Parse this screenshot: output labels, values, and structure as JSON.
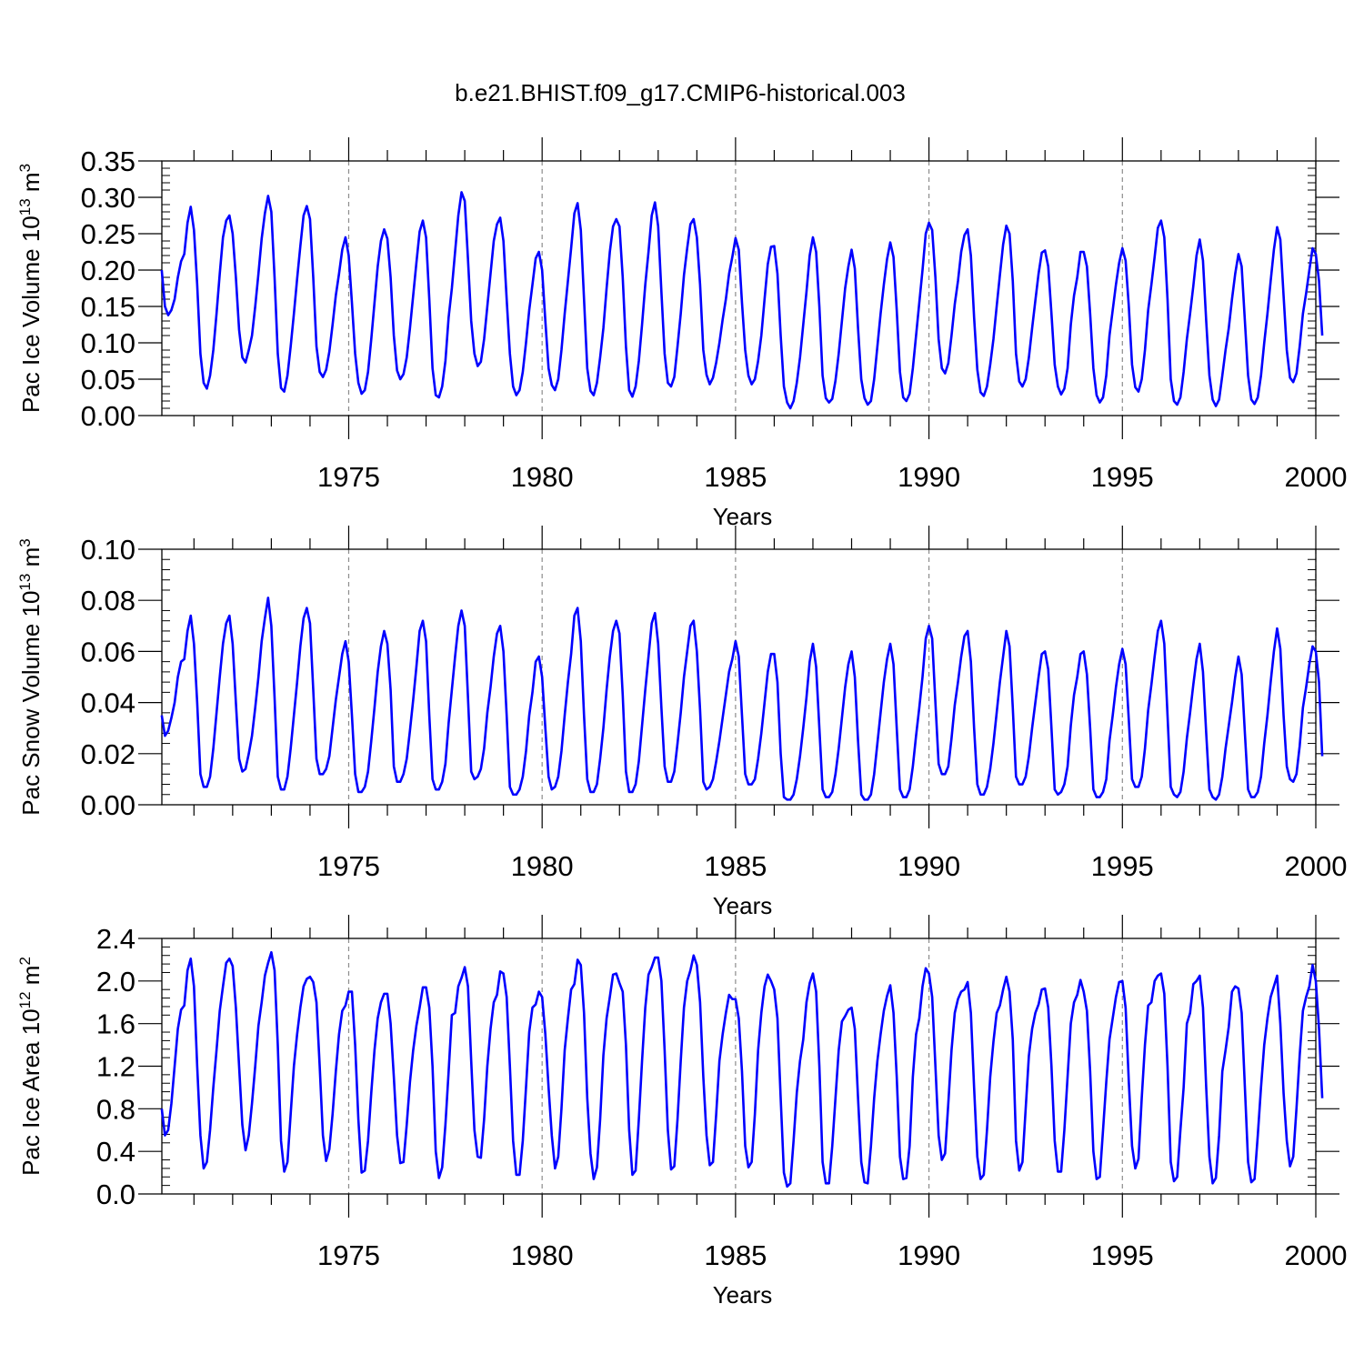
{
  "figure_title": "b.e21.BHIST.f09_g17.CMIP6-historical.003",
  "line_color": "#0000ff",
  "chart_data": [
    {
      "type": "line",
      "ylabel_main": "Pac Ice Volume 10",
      "ylabel_exp": "13",
      "ylabel_unit": " m",
      "ylabel_unit_exp": "3",
      "xlabel": "Years",
      "xlim": [
        1970.17,
        2000
      ],
      "ylim": [
        0,
        0.35
      ],
      "x_ticks": [
        1975,
        1980,
        1985,
        1990,
        1995,
        2000
      ],
      "x_tick_labels": [
        "1975",
        "1980",
        "1985",
        "1990",
        "1995",
        "2000"
      ],
      "y_ticks": [
        0,
        0.05,
        0.1,
        0.15,
        0.2,
        0.25,
        0.3,
        0.35
      ],
      "y_tick_labels": [
        "0.00",
        "0.05",
        "0.10",
        "0.15",
        "0.20",
        "0.25",
        "0.30",
        "0.35"
      ],
      "start_year": 1970,
      "month_start": 2,
      "values": [
        0.2,
        0.15,
        0.138,
        0.145,
        0.16,
        0.19,
        0.212,
        0.222,
        0.265,
        0.287,
        0.255,
        0.18,
        0.085,
        0.045,
        0.037,
        0.055,
        0.09,
        0.14,
        0.195,
        0.245,
        0.268,
        0.275,
        0.25,
        0.19,
        0.118,
        0.08,
        0.073,
        0.09,
        0.11,
        0.15,
        0.195,
        0.243,
        0.278,
        0.302,
        0.28,
        0.19,
        0.085,
        0.038,
        0.033,
        0.055,
        0.095,
        0.14,
        0.188,
        0.233,
        0.275,
        0.288,
        0.27,
        0.19,
        0.095,
        0.06,
        0.053,
        0.063,
        0.088,
        0.125,
        0.165,
        0.195,
        0.228,
        0.245,
        0.22,
        0.155,
        0.085,
        0.045,
        0.03,
        0.035,
        0.06,
        0.105,
        0.155,
        0.205,
        0.24,
        0.256,
        0.243,
        0.19,
        0.11,
        0.062,
        0.05,
        0.057,
        0.08,
        0.12,
        0.165,
        0.21,
        0.253,
        0.268,
        0.245,
        0.16,
        0.065,
        0.028,
        0.025,
        0.04,
        0.075,
        0.135,
        0.175,
        0.225,
        0.275,
        0.307,
        0.295,
        0.215,
        0.13,
        0.085,
        0.068,
        0.074,
        0.105,
        0.15,
        0.195,
        0.24,
        0.263,
        0.272,
        0.24,
        0.16,
        0.085,
        0.04,
        0.028,
        0.035,
        0.06,
        0.1,
        0.145,
        0.18,
        0.216,
        0.225,
        0.2,
        0.13,
        0.065,
        0.042,
        0.035,
        0.05,
        0.09,
        0.14,
        0.185,
        0.23,
        0.278,
        0.292,
        0.255,
        0.16,
        0.065,
        0.034,
        0.028,
        0.045,
        0.08,
        0.12,
        0.175,
        0.225,
        0.26,
        0.27,
        0.26,
        0.19,
        0.095,
        0.035,
        0.026,
        0.04,
        0.075,
        0.125,
        0.18,
        0.225,
        0.275,
        0.293,
        0.26,
        0.17,
        0.085,
        0.045,
        0.04,
        0.053,
        0.095,
        0.14,
        0.193,
        0.23,
        0.263,
        0.27,
        0.245,
        0.18,
        0.09,
        0.056,
        0.043,
        0.052,
        0.073,
        0.1,
        0.132,
        0.16,
        0.195,
        0.218,
        0.244,
        0.228,
        0.155,
        0.09,
        0.055,
        0.043,
        0.05,
        0.075,
        0.11,
        0.16,
        0.208,
        0.232,
        0.233,
        0.195,
        0.11,
        0.04,
        0.018,
        0.01,
        0.02,
        0.045,
        0.08,
        0.125,
        0.17,
        0.22,
        0.245,
        0.225,
        0.15,
        0.055,
        0.024,
        0.018,
        0.023,
        0.048,
        0.085,
        0.13,
        0.175,
        0.205,
        0.228,
        0.202,
        0.12,
        0.05,
        0.024,
        0.015,
        0.02,
        0.05,
        0.095,
        0.14,
        0.18,
        0.215,
        0.238,
        0.218,
        0.145,
        0.06,
        0.025,
        0.02,
        0.03,
        0.065,
        0.11,
        0.155,
        0.2,
        0.25,
        0.265,
        0.255,
        0.19,
        0.105,
        0.065,
        0.058,
        0.072,
        0.11,
        0.153,
        0.185,
        0.225,
        0.248,
        0.256,
        0.22,
        0.135,
        0.063,
        0.032,
        0.027,
        0.04,
        0.07,
        0.105,
        0.15,
        0.193,
        0.235,
        0.261,
        0.25,
        0.185,
        0.085,
        0.047,
        0.04,
        0.05,
        0.08,
        0.12,
        0.158,
        0.195,
        0.224,
        0.227,
        0.205,
        0.14,
        0.07,
        0.04,
        0.029,
        0.037,
        0.065,
        0.125,
        0.165,
        0.19,
        0.225,
        0.225,
        0.205,
        0.14,
        0.065,
        0.028,
        0.018,
        0.025,
        0.055,
        0.11,
        0.145,
        0.18,
        0.21,
        0.23,
        0.213,
        0.15,
        0.07,
        0.039,
        0.033,
        0.05,
        0.09,
        0.145,
        0.18,
        0.218,
        0.258,
        0.268,
        0.245,
        0.16,
        0.05,
        0.02,
        0.015,
        0.025,
        0.06,
        0.105,
        0.14,
        0.178,
        0.22,
        0.242,
        0.213,
        0.13,
        0.055,
        0.022,
        0.013,
        0.022,
        0.055,
        0.09,
        0.12,
        0.16,
        0.195,
        0.222,
        0.205,
        0.13,
        0.055,
        0.022,
        0.016,
        0.025,
        0.055,
        0.1,
        0.14,
        0.185,
        0.228,
        0.259,
        0.242,
        0.165,
        0.09,
        0.052,
        0.046,
        0.058,
        0.095,
        0.14,
        0.168,
        0.2,
        0.23,
        0.222,
        0.185,
        0.11
      ]
    },
    {
      "type": "line",
      "ylabel_main": "Pac Snow Volume 10",
      "ylabel_exp": "13",
      "ylabel_unit": " m",
      "ylabel_unit_exp": "3",
      "xlabel": "Years",
      "xlim": [
        1970.17,
        2000
      ],
      "ylim": [
        0,
        0.1
      ],
      "x_ticks": [
        1975,
        1980,
        1985,
        1990,
        1995,
        2000
      ],
      "x_tick_labels": [
        "1975",
        "1980",
        "1985",
        "1990",
        "1995",
        "2000"
      ],
      "y_ticks": [
        0,
        0.02,
        0.04,
        0.06,
        0.08,
        0.1
      ],
      "y_tick_labels": [
        "0.00",
        "0.02",
        "0.04",
        "0.06",
        "0.08",
        "0.10"
      ],
      "start_year": 1970,
      "month_start": 2,
      "values": [
        0.035,
        0.027,
        0.029,
        0.034,
        0.04,
        0.05,
        0.056,
        0.057,
        0.068,
        0.074,
        0.063,
        0.04,
        0.012,
        0.007,
        0.007,
        0.011,
        0.022,
        0.036,
        0.05,
        0.063,
        0.071,
        0.074,
        0.063,
        0.04,
        0.018,
        0.013,
        0.014,
        0.02,
        0.027,
        0.038,
        0.05,
        0.064,
        0.073,
        0.081,
        0.07,
        0.042,
        0.011,
        0.006,
        0.006,
        0.011,
        0.022,
        0.035,
        0.048,
        0.062,
        0.073,
        0.077,
        0.071,
        0.045,
        0.018,
        0.012,
        0.012,
        0.014,
        0.019,
        0.03,
        0.041,
        0.05,
        0.059,
        0.064,
        0.056,
        0.035,
        0.012,
        0.005,
        0.005,
        0.007,
        0.013,
        0.025,
        0.038,
        0.052,
        0.062,
        0.068,
        0.063,
        0.045,
        0.015,
        0.009,
        0.009,
        0.012,
        0.018,
        0.029,
        0.041,
        0.054,
        0.068,
        0.072,
        0.064,
        0.035,
        0.01,
        0.006,
        0.006,
        0.009,
        0.016,
        0.032,
        0.045,
        0.058,
        0.07,
        0.076,
        0.07,
        0.042,
        0.013,
        0.01,
        0.011,
        0.014,
        0.022,
        0.036,
        0.046,
        0.058,
        0.067,
        0.07,
        0.06,
        0.035,
        0.007,
        0.004,
        0.004,
        0.006,
        0.011,
        0.021,
        0.035,
        0.044,
        0.056,
        0.058,
        0.05,
        0.03,
        0.011,
        0.006,
        0.007,
        0.011,
        0.021,
        0.035,
        0.048,
        0.059,
        0.074,
        0.077,
        0.064,
        0.035,
        0.01,
        0.005,
        0.005,
        0.008,
        0.018,
        0.03,
        0.045,
        0.058,
        0.068,
        0.072,
        0.067,
        0.043,
        0.013,
        0.005,
        0.005,
        0.008,
        0.017,
        0.031,
        0.045,
        0.058,
        0.071,
        0.075,
        0.063,
        0.038,
        0.015,
        0.009,
        0.009,
        0.013,
        0.024,
        0.036,
        0.05,
        0.06,
        0.07,
        0.072,
        0.06,
        0.037,
        0.009,
        0.006,
        0.007,
        0.01,
        0.017,
        0.025,
        0.034,
        0.043,
        0.052,
        0.057,
        0.064,
        0.058,
        0.035,
        0.012,
        0.008,
        0.008,
        0.01,
        0.018,
        0.028,
        0.04,
        0.052,
        0.059,
        0.059,
        0.048,
        0.02,
        0.003,
        0.002,
        0.002,
        0.004,
        0.01,
        0.019,
        0.03,
        0.042,
        0.056,
        0.063,
        0.054,
        0.03,
        0.006,
        0.003,
        0.003,
        0.005,
        0.012,
        0.022,
        0.034,
        0.046,
        0.055,
        0.06,
        0.05,
        0.025,
        0.004,
        0.002,
        0.002,
        0.004,
        0.012,
        0.024,
        0.036,
        0.048,
        0.057,
        0.063,
        0.055,
        0.03,
        0.006,
        0.003,
        0.003,
        0.006,
        0.015,
        0.027,
        0.038,
        0.05,
        0.065,
        0.07,
        0.065,
        0.04,
        0.016,
        0.012,
        0.012,
        0.015,
        0.026,
        0.039,
        0.048,
        0.058,
        0.066,
        0.068,
        0.056,
        0.03,
        0.008,
        0.004,
        0.004,
        0.007,
        0.014,
        0.024,
        0.036,
        0.048,
        0.058,
        0.068,
        0.062,
        0.038,
        0.011,
        0.008,
        0.008,
        0.011,
        0.019,
        0.03,
        0.04,
        0.05,
        0.059,
        0.06,
        0.053,
        0.03,
        0.006,
        0.004,
        0.005,
        0.008,
        0.015,
        0.031,
        0.043,
        0.05,
        0.059,
        0.06,
        0.051,
        0.03,
        0.006,
        0.003,
        0.003,
        0.005,
        0.01,
        0.025,
        0.035,
        0.046,
        0.055,
        0.061,
        0.055,
        0.033,
        0.01,
        0.007,
        0.007,
        0.011,
        0.022,
        0.037,
        0.047,
        0.058,
        0.068,
        0.072,
        0.063,
        0.035,
        0.007,
        0.004,
        0.003,
        0.005,
        0.013,
        0.026,
        0.036,
        0.047,
        0.057,
        0.063,
        0.052,
        0.028,
        0.006,
        0.003,
        0.002,
        0.004,
        0.011,
        0.022,
        0.031,
        0.04,
        0.05,
        0.058,
        0.051,
        0.028,
        0.006,
        0.003,
        0.003,
        0.005,
        0.011,
        0.024,
        0.035,
        0.048,
        0.06,
        0.069,
        0.061,
        0.035,
        0.015,
        0.01,
        0.009,
        0.012,
        0.023,
        0.038,
        0.046,
        0.055,
        0.062,
        0.06,
        0.048,
        0.019
      ]
    },
    {
      "type": "line",
      "ylabel_main": "Pac Ice Area 10",
      "ylabel_exp": "12",
      "ylabel_unit": " m",
      "ylabel_unit_exp": "2",
      "xlabel": "Years",
      "xlim": [
        1970.17,
        2000
      ],
      "ylim": [
        0,
        2.4
      ],
      "x_ticks": [
        1975,
        1980,
        1985,
        1990,
        1995,
        2000
      ],
      "x_tick_labels": [
        "1975",
        "1980",
        "1985",
        "1990",
        "1995",
        "2000"
      ],
      "y_ticks": [
        0,
        0.4,
        0.8,
        1.2,
        1.6,
        2.0,
        2.4
      ],
      "y_tick_labels": [
        "0.0",
        "0.4",
        "0.8",
        "1.2",
        "1.6",
        "2.0",
        "2.4"
      ],
      "start_year": 1970,
      "month_start": 2,
      "values": [
        0.8,
        0.55,
        0.6,
        0.85,
        1.2,
        1.55,
        1.73,
        1.77,
        2.1,
        2.21,
        1.95,
        1.2,
        0.55,
        0.24,
        0.3,
        0.6,
        1.0,
        1.35,
        1.72,
        1.95,
        2.17,
        2.21,
        2.14,
        1.75,
        1.2,
        0.65,
        0.41,
        0.55,
        0.85,
        1.2,
        1.58,
        1.8,
        2.05,
        2.17,
        2.27,
        2.1,
        1.4,
        0.5,
        0.21,
        0.3,
        0.75,
        1.2,
        1.5,
        1.75,
        1.95,
        2.02,
        2.04,
        1.99,
        1.8,
        1.2,
        0.55,
        0.31,
        0.42,
        0.75,
        1.15,
        1.5,
        1.72,
        1.77,
        1.9,
        1.9,
        1.4,
        0.7,
        0.2,
        0.22,
        0.5,
        0.95,
        1.35,
        1.65,
        1.8,
        1.88,
        1.88,
        1.6,
        1.1,
        0.55,
        0.29,
        0.3,
        0.65,
        1.05,
        1.35,
        1.58,
        1.75,
        1.94,
        1.94,
        1.75,
        1.2,
        0.4,
        0.15,
        0.25,
        0.65,
        1.15,
        1.68,
        1.7,
        1.95,
        2.03,
        2.13,
        1.95,
        1.25,
        0.6,
        0.35,
        0.34,
        0.7,
        1.2,
        1.55,
        1.8,
        1.87,
        2.09,
        2.07,
        1.85,
        1.2,
        0.5,
        0.18,
        0.18,
        0.5,
        1.0,
        1.52,
        1.75,
        1.78,
        1.9,
        1.85,
        1.5,
        1.0,
        0.55,
        0.24,
        0.35,
        0.8,
        1.35,
        1.65,
        1.92,
        1.97,
        2.2,
        2.15,
        1.7,
        0.9,
        0.38,
        0.14,
        0.25,
        0.7,
        1.3,
        1.65,
        1.85,
        2.06,
        2.07,
        1.98,
        1.9,
        1.4,
        0.6,
        0.18,
        0.22,
        0.7,
        1.25,
        1.75,
        2.06,
        2.13,
        2.22,
        2.22,
        2.0,
        1.35,
        0.6,
        0.23,
        0.26,
        0.7,
        1.25,
        1.75,
        2.0,
        2.1,
        2.24,
        2.15,
        1.8,
        1.1,
        0.55,
        0.27,
        0.3,
        0.75,
        1.25,
        1.5,
        1.7,
        1.87,
        1.83,
        1.83,
        1.65,
        1.15,
        0.45,
        0.25,
        0.3,
        0.75,
        1.35,
        1.7,
        1.95,
        2.06,
        2.0,
        1.92,
        1.65,
        0.9,
        0.2,
        0.07,
        0.1,
        0.5,
        0.95,
        1.25,
        1.45,
        1.8,
        1.98,
        2.07,
        1.9,
        1.2,
        0.3,
        0.1,
        0.1,
        0.45,
        0.9,
        1.35,
        1.62,
        1.67,
        1.73,
        1.75,
        1.55,
        0.9,
        0.3,
        0.11,
        0.1,
        0.45,
        0.9,
        1.25,
        1.5,
        1.72,
        1.86,
        1.96,
        1.7,
        1.1,
        0.35,
        0.14,
        0.15,
        0.45,
        1.1,
        1.5,
        1.65,
        1.95,
        2.12,
        2.07,
        1.85,
        1.2,
        0.55,
        0.32,
        0.38,
        0.85,
        1.35,
        1.7,
        1.83,
        1.9,
        1.92,
        1.99,
        1.7,
        1.0,
        0.35,
        0.14,
        0.18,
        0.6,
        1.1,
        1.43,
        1.7,
        1.77,
        1.92,
        2.04,
        1.9,
        1.45,
        0.5,
        0.22,
        0.3,
        0.8,
        1.3,
        1.55,
        1.7,
        1.78,
        1.92,
        1.93,
        1.75,
        1.2,
        0.5,
        0.21,
        0.21,
        0.6,
        1.1,
        1.6,
        1.8,
        1.87,
        2.01,
        1.9,
        1.72,
        1.15,
        0.4,
        0.14,
        0.16,
        0.6,
        1.05,
        1.45,
        1.65,
        1.85,
        1.99,
        2.0,
        1.75,
        1.05,
        0.45,
        0.24,
        0.33,
        0.9,
        1.4,
        1.77,
        1.8,
        2.0,
        2.05,
        2.07,
        1.88,
        1.2,
        0.3,
        0.12,
        0.16,
        0.6,
        1.0,
        1.6,
        1.7,
        1.97,
        2.0,
        2.05,
        1.75,
        1.0,
        0.35,
        0.1,
        0.15,
        0.55,
        1.15,
        1.35,
        1.57,
        1.9,
        1.95,
        1.93,
        1.7,
        1.0,
        0.3,
        0.11,
        0.14,
        0.55,
        1.0,
        1.4,
        1.65,
        1.85,
        1.95,
        2.05,
        1.6,
        0.95,
        0.5,
        0.26,
        0.35,
        0.8,
        1.3,
        1.72,
        1.85,
        1.95,
        2.15,
        2.0,
        1.55,
        0.9
      ]
    }
  ]
}
